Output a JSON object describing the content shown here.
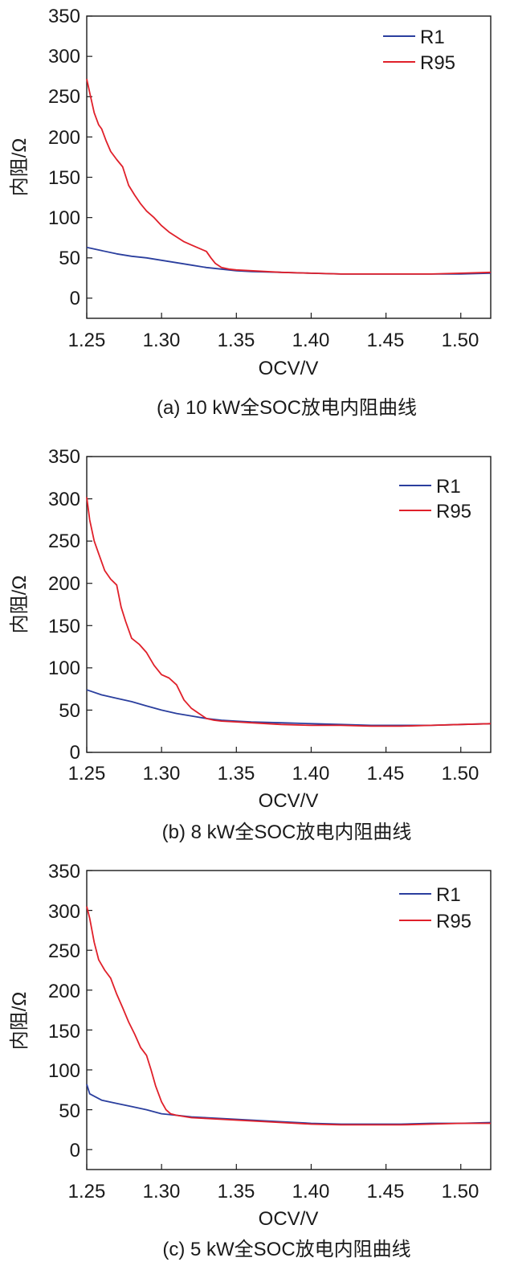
{
  "colors": {
    "R1": "#2b3f9e",
    "R95": "#e0202a",
    "axis": "#1a1a1a"
  },
  "chart_data": [
    {
      "type": "line",
      "caption": "(a) 10 kW全SOC放电内阻曲线",
      "xlabel": "OCV/V",
      "ylabel": "内阻/Ω",
      "xlim": [
        1.25,
        1.52
      ],
      "ylim": [
        -25,
        350
      ],
      "xticks": [
        1.25,
        1.3,
        1.35,
        1.4,
        1.45,
        1.5
      ],
      "xtick_labels": [
        "1.25",
        "1.30",
        "1.35",
        "1.40",
        "1.45",
        "1.50"
      ],
      "yticks": [
        0,
        50,
        100,
        150,
        200,
        250,
        300,
        350
      ],
      "ytick_labels": [
        "0",
        "50",
        "100",
        "150",
        "200",
        "250",
        "300",
        "350"
      ],
      "legend": [
        "R1",
        "R95"
      ],
      "legend_position": "top-right",
      "series": [
        {
          "name": "R1",
          "color": "#2b3f9e",
          "x": [
            1.25,
            1.26,
            1.27,
            1.28,
            1.29,
            1.3,
            1.31,
            1.32,
            1.33,
            1.34,
            1.35,
            1.36,
            1.38,
            1.4,
            1.42,
            1.44,
            1.46,
            1.48,
            1.5,
            1.52
          ],
          "y": [
            63,
            59,
            55,
            52,
            50,
            47,
            44,
            41,
            38,
            36,
            34,
            33,
            32,
            31,
            30,
            30,
            30,
            30,
            30,
            31
          ]
        },
        {
          "name": "R95",
          "color": "#e0202a",
          "x": [
            1.25,
            1.252,
            1.255,
            1.258,
            1.26,
            1.263,
            1.266,
            1.27,
            1.274,
            1.278,
            1.282,
            1.286,
            1.29,
            1.295,
            1.3,
            1.305,
            1.31,
            1.315,
            1.32,
            1.325,
            1.33,
            1.333,
            1.336,
            1.34,
            1.345,
            1.35,
            1.36,
            1.38,
            1.4,
            1.42,
            1.44,
            1.46,
            1.48,
            1.5,
            1.52
          ],
          "y": [
            272,
            255,
            230,
            215,
            210,
            195,
            182,
            172,
            163,
            140,
            128,
            117,
            108,
            100,
            90,
            82,
            76,
            70,
            66,
            62,
            58,
            50,
            43,
            38,
            36,
            35,
            34,
            32,
            31,
            30,
            30,
            30,
            30,
            31,
            32
          ]
        }
      ]
    },
    {
      "type": "line",
      "caption": "(b) 8 kW全SOC放电内阻曲线",
      "xlabel": "OCV/V",
      "ylabel": "内阻/Ω",
      "xlim": [
        1.25,
        1.52
      ],
      "ylim": [
        0,
        350
      ],
      "xticks": [
        1.25,
        1.3,
        1.35,
        1.4,
        1.45,
        1.5
      ],
      "xtick_labels": [
        "1.25",
        "1.30",
        "1.35",
        "1.40",
        "1.45",
        "1.50"
      ],
      "yticks": [
        0,
        50,
        100,
        150,
        200,
        250,
        300,
        350
      ],
      "ytick_labels": [
        "0",
        "50",
        "100",
        "150",
        "200",
        "250",
        "300",
        "350"
      ],
      "legend": [
        "R1",
        "R95"
      ],
      "legend_position": "top-right",
      "series": [
        {
          "name": "R1",
          "color": "#2b3f9e",
          "x": [
            1.25,
            1.26,
            1.27,
            1.28,
            1.29,
            1.3,
            1.31,
            1.32,
            1.33,
            1.34,
            1.35,
            1.36,
            1.38,
            1.4,
            1.42,
            1.44,
            1.46,
            1.48,
            1.5,
            1.52
          ],
          "y": [
            74,
            68,
            64,
            60,
            55,
            50,
            46,
            43,
            40,
            38,
            37,
            36,
            35,
            34,
            33,
            32,
            32,
            32,
            33,
            34
          ]
        },
        {
          "name": "R95",
          "color": "#e0202a",
          "x": [
            1.25,
            1.252,
            1.255,
            1.258,
            1.262,
            1.266,
            1.27,
            1.273,
            1.276,
            1.28,
            1.285,
            1.29,
            1.295,
            1.3,
            1.305,
            1.31,
            1.315,
            1.32,
            1.325,
            1.33,
            1.335,
            1.34,
            1.35,
            1.36,
            1.38,
            1.4,
            1.42,
            1.44,
            1.46,
            1.48,
            1.5,
            1.52
          ],
          "y": [
            302,
            275,
            250,
            235,
            215,
            205,
            198,
            172,
            155,
            135,
            128,
            118,
            103,
            92,
            88,
            80,
            62,
            52,
            46,
            40,
            38,
            37,
            36,
            35,
            33,
            32,
            32,
            31,
            31,
            32,
            33,
            34
          ]
        }
      ]
    },
    {
      "type": "line",
      "caption": "(c) 5 kW全SOC放电内阻曲线",
      "xlabel": "OCV/V",
      "ylabel": "内阻/Ω",
      "xlim": [
        1.25,
        1.52
      ],
      "ylim": [
        -25,
        350
      ],
      "xticks": [
        1.25,
        1.3,
        1.35,
        1.4,
        1.45,
        1.5
      ],
      "xtick_labels": [
        "1.25",
        "1.30",
        "1.35",
        "1.40",
        "1.45",
        "1.50"
      ],
      "yticks": [
        0,
        50,
        100,
        150,
        200,
        250,
        300,
        350
      ],
      "ytick_labels": [
        "0",
        "50",
        "100",
        "150",
        "200",
        "250",
        "300",
        "350"
      ],
      "legend": [
        "R1",
        "R95"
      ],
      "legend_position": "top-right",
      "series": [
        {
          "name": "R1",
          "color": "#2b3f9e",
          "x": [
            1.25,
            1.252,
            1.26,
            1.27,
            1.28,
            1.29,
            1.3,
            1.31,
            1.32,
            1.33,
            1.34,
            1.35,
            1.36,
            1.38,
            1.4,
            1.42,
            1.44,
            1.46,
            1.48,
            1.5,
            1.52
          ],
          "y": [
            82,
            70,
            62,
            58,
            54,
            50,
            45,
            43,
            41,
            40,
            39,
            38,
            37,
            35,
            33,
            32,
            32,
            32,
            33,
            33,
            34
          ]
        },
        {
          "name": "R95",
          "color": "#e0202a",
          "x": [
            1.25,
            1.252,
            1.255,
            1.258,
            1.262,
            1.266,
            1.27,
            1.274,
            1.278,
            1.282,
            1.286,
            1.29,
            1.293,
            1.296,
            1.3,
            1.303,
            1.306,
            1.31,
            1.32,
            1.33,
            1.34,
            1.35,
            1.36,
            1.38,
            1.4,
            1.42,
            1.44,
            1.46,
            1.48,
            1.5,
            1.52
          ],
          "y": [
            305,
            290,
            260,
            238,
            225,
            215,
            195,
            178,
            160,
            145,
            128,
            118,
            100,
            80,
            60,
            50,
            45,
            43,
            40,
            39,
            38,
            37,
            36,
            34,
            32,
            31,
            31,
            31,
            32,
            33,
            33
          ]
        }
      ]
    }
  ]
}
